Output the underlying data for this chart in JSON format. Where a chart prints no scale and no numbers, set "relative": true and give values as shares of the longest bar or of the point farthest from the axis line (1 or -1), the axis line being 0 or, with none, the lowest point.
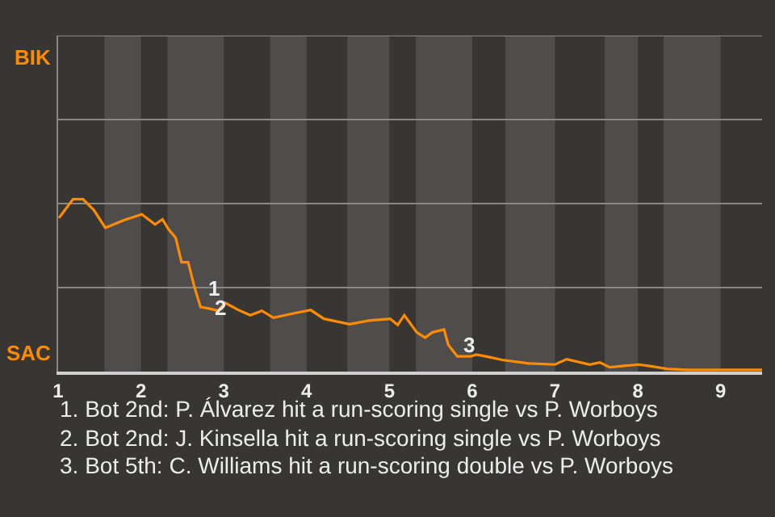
{
  "chart_data": {
    "type": "line",
    "relative": true,
    "x": [
      1.01,
      1.18,
      1.3,
      1.43,
      1.57,
      1.79,
      2.01,
      2.17,
      2.26,
      2.33,
      2.42,
      2.49,
      2.57,
      2.65,
      2.72,
      2.82,
      2.93,
      3.02,
      3.17,
      3.32,
      3.46,
      3.6,
      3.84,
      4.05,
      4.21,
      4.52,
      4.75,
      5.01,
      5.1,
      5.18,
      5.33,
      5.43,
      5.52,
      5.66,
      5.71,
      5.82,
      5.98,
      6.05,
      6.21,
      6.36,
      6.68,
      7.0,
      7.14,
      7.42,
      7.54,
      7.66,
      7.83,
      8.01,
      8.16,
      8.35,
      8.59,
      9.0,
      9.5
    ],
    "series": [
      {
        "color": "#ff8c00",
        "values": [
          0.891,
          1,
          1,
          0.938,
          0.834,
          0.877,
          0.912,
          0.854,
          0.883,
          0.828,
          0.776,
          0.634,
          0.634,
          0.483,
          0.374,
          0.366,
          0.353,
          0.398,
          0.359,
          0.327,
          0.353,
          0.312,
          0.337,
          0.357,
          0.306,
          0.275,
          0.296,
          0.306,
          0.271,
          0.327,
          0.228,
          0.197,
          0.228,
          0.244,
          0.156,
          0.088,
          0.088,
          0.099,
          0.084,
          0.068,
          0.047,
          0.041,
          0.072,
          0.041,
          0.053,
          0.025,
          0.033,
          0.041,
          0.031,
          0.016,
          0.01,
          0.01,
          0.01
        ]
      }
    ],
    "xlim": [
      1,
      9.5
    ],
    "xticks": [
      1,
      2,
      3,
      4,
      5,
      6,
      7,
      8,
      9
    ],
    "marker": "none",
    "line_style": "solid",
    "ref_lines": [
      {
        "axis": "y",
        "value": 0.487,
        "color": "#8a8886"
      },
      {
        "axis": "y",
        "value": 0.975,
        "color": "#8a8886"
      },
      {
        "axis": "y",
        "value": 1.462,
        "color": "#8a8886"
      },
      {
        "axis": "y",
        "value": 1.949,
        "color": "#8a8886"
      }
    ],
    "bands": [
      {
        "axis": "x",
        "from": 1.56,
        "to": 2,
        "color": "#4e4d4b"
      },
      {
        "axis": "x",
        "from": 2.32,
        "to": 3,
        "color": "#4e4d4b"
      },
      {
        "axis": "x",
        "from": 3.56,
        "to": 4,
        "color": "#4e4d4b"
      },
      {
        "axis": "x",
        "from": 4.49,
        "to": 5,
        "color": "#4e4d4b"
      },
      {
        "axis": "x",
        "from": 5.32,
        "to": 6,
        "color": "#4e4d4b"
      },
      {
        "axis": "x",
        "from": 6.4,
        "to": 7,
        "color": "#4e4d4b"
      },
      {
        "axis": "x",
        "from": 7.6,
        "to": 8,
        "color": "#4e4d4b"
      },
      {
        "axis": "x",
        "from": 8.31,
        "to": 9,
        "color": "#4e4d4b"
      }
    ],
    "annotations": [
      {
        "text": "1",
        "x": 2.71,
        "y": 0.487
      },
      {
        "text": "2",
        "x": 2.79,
        "y": 0.37
      },
      {
        "text": "3",
        "x": 5.79,
        "y": 0.156
      },
      "BIK",
      "SAC",
      "1. Bot 2nd: P. Álvarez hit a run-scoring single vs P. Worboys",
      "2. Bot 2nd: J. Kinsella hit a run-scoring single vs P. Worboys",
      "3. Bot 5th: C. Williams hit a run-scoring double vs P. Worboys"
    ]
  }
}
